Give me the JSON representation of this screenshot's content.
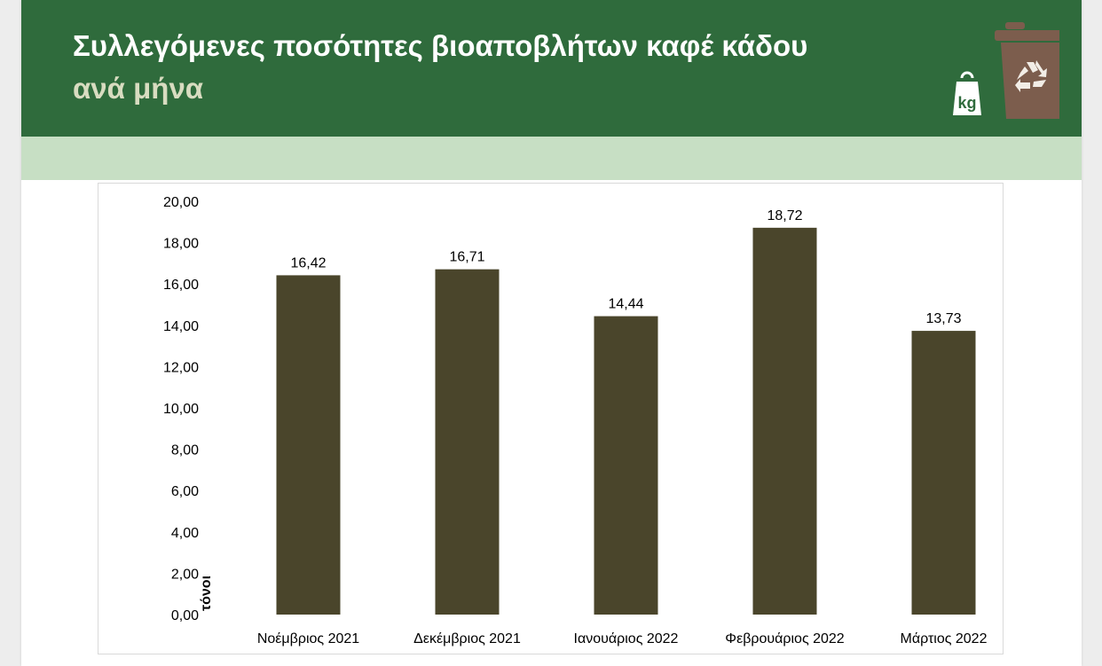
{
  "header": {
    "title": "Συλλεγόμενες ποσότητες βιοαποβλήτων καφέ κάδου",
    "subtitle": "ανά μήνα",
    "logo_icon": "brown-bin-recycle-icon",
    "weight_badge": "kg",
    "colors": {
      "banner": "#2f6b3c",
      "band": "#c7dfc4",
      "subtitle": "#d8dcc0",
      "bin": "#7c5d4d"
    }
  },
  "chart_data": {
    "type": "bar",
    "title": "",
    "xlabel": "",
    "ylabel": "τόνοι",
    "categories": [
      "Νοέμβριος 2021",
      "Δεκέμβριος 2021",
      "Ιανουάριος 2022",
      "Φεβρουάριος 2022",
      "Μάρτιος 2022"
    ],
    "values": [
      16.42,
      16.71,
      14.44,
      18.72,
      13.73
    ],
    "value_labels": [
      "16,42",
      "16,71",
      "14,44",
      "18,72",
      "13,73"
    ],
    "ylim": [
      0,
      20
    ],
    "ytick_labels": [
      "0,00",
      "2,00",
      "4,00",
      "6,00",
      "8,00",
      "10,00",
      "12,00",
      "14,00",
      "16,00",
      "18,00",
      "20,00"
    ],
    "grid": false,
    "legend": "none",
    "bar_color": "#4a452b"
  }
}
